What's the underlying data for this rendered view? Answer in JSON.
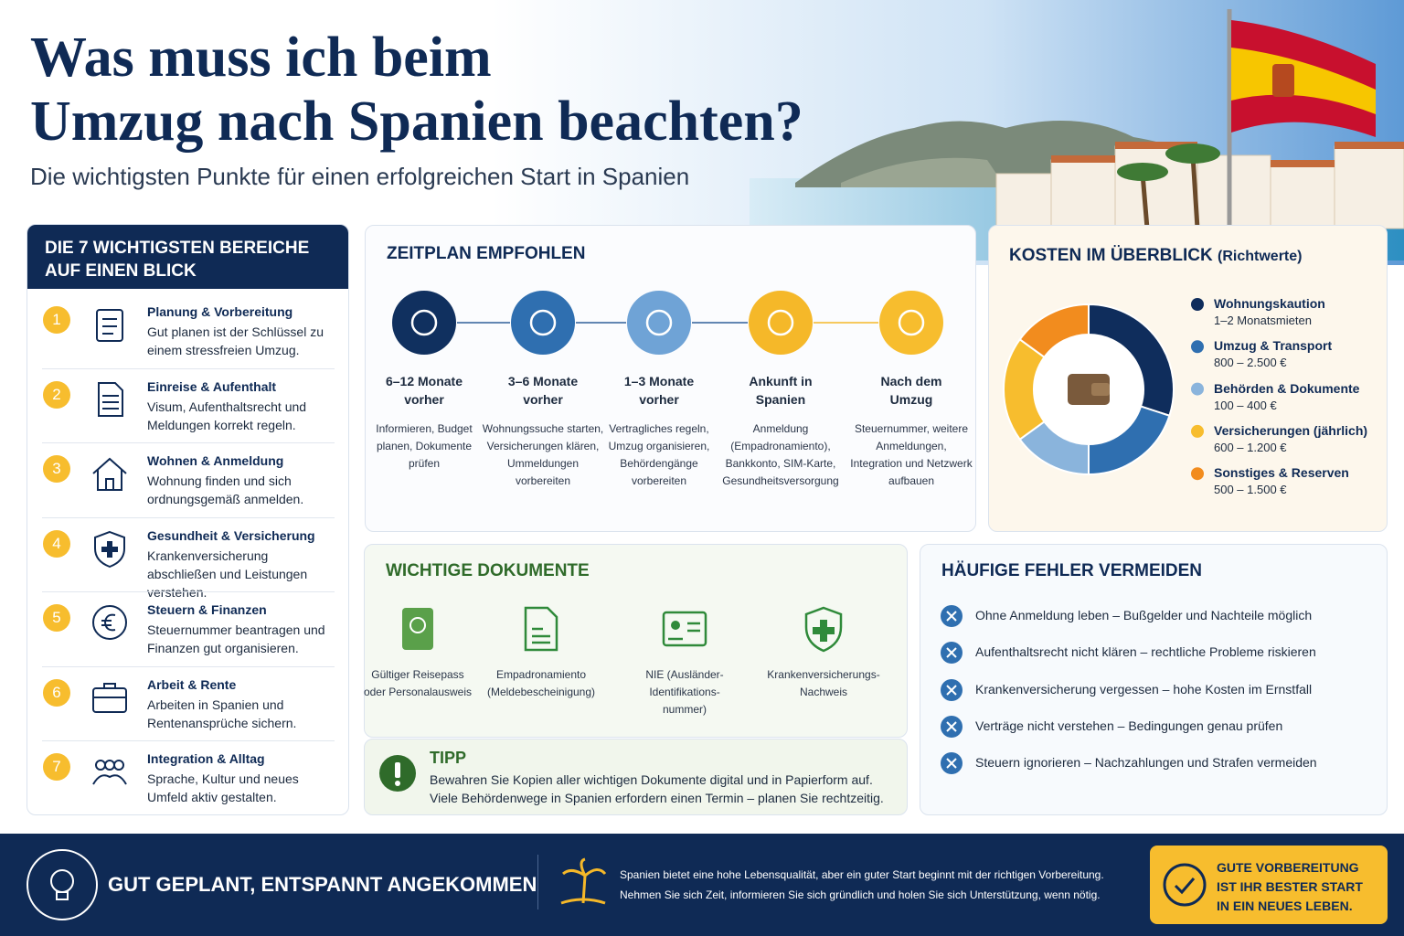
{
  "header": {
    "title": [
      "Was muss ich beim",
      "Umzug nach Spanien beachten?"
    ],
    "subtitle": "Die wichtigsten Punkte für einen erfolgreichen Start in Spanien"
  },
  "bereiche": {
    "title": [
      "DIE 7 WICHTIGSTEN BEREICHE",
      "AUF EINEN BLICK"
    ],
    "items": [
      {
        "number": 1,
        "title": "Planung & Vorbereitung",
        "text": "Gut planen ist der Schlüssel zu einem stressfreien Umzug."
      },
      {
        "number": 2,
        "title": "Einreise & Aufenthalt",
        "text": "Visum, Aufenthaltsrecht und Meldungen korrekt regeln."
      },
      {
        "number": 3,
        "title": "Wohnen & Anmeldung",
        "text": "Wohnung finden und sich ordnungsgemäß anmelden."
      },
      {
        "number": 4,
        "title": "Gesundheit & Versicherung",
        "text": "Krankenversicherung abschließen und Leistungen verstehen."
      },
      {
        "number": 5,
        "title": "Steuern & Finanzen",
        "text": "Steuernummer beantragen und Finanzen gut organisieren."
      },
      {
        "number": 6,
        "title": "Arbeit & Rente",
        "text": "Arbeiten in Spanien und Rentenansprüche sichern."
      },
      {
        "number": 7,
        "title": "Integration & Alltag",
        "text": "Sprache, Kultur und neues Umfeld aktiv gestalten."
      }
    ]
  },
  "zeitplan": {
    "title": "ZEITPLAN EMPFOHLEN",
    "steps": [
      {
        "label": "6–12 Monate vorher",
        "text": "Informieren, Budget planen, Dokumente prüfen",
        "color": "#10305f"
      },
      {
        "label": "3–6 Monate vorher",
        "text": "Wohnungssuche starten, Versicherungen klären, Ummeldungen vorbereiten",
        "color": "#2f6fb0"
      },
      {
        "label": "1–3 Monate vorher",
        "text": "Vertragliches regeln, Umzug organisieren, Behördengänge vorbereiten",
        "color": "#6fa3d6"
      },
      {
        "label": "Ankunft in Spanien",
        "text": "Anmeldung (Empadronamiento), Bankkonto, SIM-Karte, Gesundheitsversorgung",
        "color": "#f5b829"
      },
      {
        "label": "Nach dem Umzug",
        "text": "Steuernummer, weitere Anmeldungen, Integration und Netzwerk aufbauen",
        "color": "#f7bd2e"
      }
    ]
  },
  "kosten": {
    "type": "pie",
    "title": "KOSTEN IM ÜBERBLICK",
    "subtitle": "(Richtwerte)",
    "items": [
      {
        "label": "Wohnungskaution",
        "range": "1–2 Monatsmieten",
        "color": "#0f2d5c",
        "share": 30
      },
      {
        "label": "Umzug & Transport",
        "range": "800 – 2.500 €",
        "color": "#2f6fb0",
        "share": 20
      },
      {
        "label": "Behörden & Dokumente",
        "range": "100 – 400 €",
        "color": "#8ab4dc",
        "share": 15
      },
      {
        "label": "Versicherungen (jährlich)",
        "range": "600 – 1.200 €",
        "color": "#f7bd2e",
        "share": 20
      },
      {
        "label": "Sonstiges & Reserven",
        "range": "500 – 1.500 €",
        "color": "#f28c1e",
        "share": 15
      }
    ]
  },
  "dokumente": {
    "title": "WICHTIGE DOKUMENTE",
    "items": [
      "Gültiger Reisepass oder Personalausweis",
      "Empadronamiento (Meldebescheinigung)",
      "NIE (Ausländer-Identifikations-nummer)",
      "Krankenversicherungs-Nachweis"
    ]
  },
  "tipp": {
    "title": "TIPP",
    "lines": [
      "Bewahren Sie Kopien aller wichtigen Dokumente digital und in Papierform auf.",
      "Viele Behördenwege in Spanien erfordern einen Termin – planen Sie rechtzeitig."
    ]
  },
  "fehler": {
    "title": "HÄUFIGE FEHLER VERMEIDEN",
    "items": [
      "Ohne Anmeldung leben – Bußgelder und Nachteile möglich",
      "Aufenthaltsrecht nicht klären – rechtliche Probleme riskieren",
      "Krankenversicherung vergessen – hohe Kosten im Ernstfall",
      "Verträge nicht verstehen – Bedingungen genau prüfen",
      "Steuern ignorieren – Nachzahlungen und Strafen vermeiden"
    ]
  },
  "footer": {
    "slogan": "GUT GEPLANT, ENTSPANNT ANGEKOMMEN",
    "lines": [
      "Spanien bietet eine hohe Lebensqualität, aber ein guter Start beginnt mit der richtigen Vorbereitung.",
      "Nehmen Sie sich Zeit, informieren Sie sich gründlich und holen Sie sich Unterstützung, wenn nötig."
    ],
    "cta": [
      "GUTE VORBEREITUNG",
      "IST IHR BESTER START",
      "IN EIN NEUES LEBEN."
    ]
  }
}
